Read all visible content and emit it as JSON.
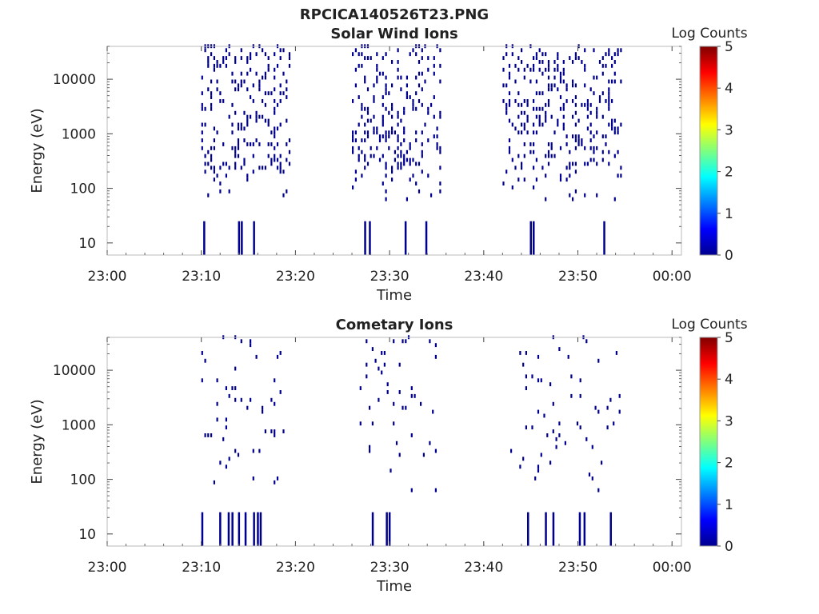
{
  "figure": {
    "title": "RPCICA140526T23.PNG"
  },
  "chart_data": [
    {
      "type": "heatmap",
      "title": "Solar Wind Ions",
      "xlabel": "Time",
      "ylabel": "Energy (eV)",
      "xlim": [
        "23:00",
        "00:01"
      ],
      "ylim": [
        6,
        40000
      ],
      "yscale": "log",
      "x_ticks": [
        "23:00",
        "23:10",
        "23:20",
        "23:30",
        "23:40",
        "23:50",
        "00:00"
      ],
      "y_ticks": [
        "10",
        "100",
        "1000",
        "10000"
      ],
      "colorbar": {
        "label": "Log Counts",
        "range": [
          0,
          5
        ],
        "ticks": [
          "0",
          "1",
          "2",
          "3",
          "4",
          "5"
        ]
      },
      "grid": false,
      "activity_intervals_minutes": [
        [
          10.0,
          19.5
        ],
        [
          26.0,
          35.5
        ],
        [
          42.0,
          54.5
        ]
      ],
      "low_energy_bursts_minutes": [
        10.2,
        13.9,
        14.2,
        15.5,
        27.3,
        27.8,
        31.6,
        33.8,
        44.9,
        45.2,
        52.7
      ],
      "cell_value_log_counts": 0
    },
    {
      "type": "heatmap",
      "title": "Cometary Ions",
      "xlabel": "Time",
      "ylabel": "Energy (eV)",
      "xlim": [
        "23:00",
        "00:01"
      ],
      "ylim": [
        6,
        40000
      ],
      "yscale": "log",
      "x_ticks": [
        "23:00",
        "23:10",
        "23:20",
        "23:30",
        "23:40",
        "23:50",
        "00:00"
      ],
      "y_ticks": [
        "10",
        "100",
        "1000",
        "10000"
      ],
      "colorbar": {
        "label": "Log Counts",
        "range": [
          0,
          5
        ],
        "ticks": [
          "0",
          "1",
          "2",
          "3",
          "4",
          "5"
        ]
      },
      "grid": false,
      "activity_intervals_minutes": [
        [
          10.0,
          19.0
        ],
        [
          26.5,
          35.0
        ],
        [
          42.5,
          54.5
        ]
      ],
      "low_energy_bursts_minutes": [
        10.0,
        11.9,
        12.8,
        13.2,
        13.9,
        14.6,
        15.5,
        15.9,
        16.2,
        28.1,
        29.6,
        29.9,
        44.6,
        46.5,
        47.3,
        50.1,
        50.6,
        53.4
      ],
      "cell_value_log_counts": 0
    }
  ]
}
